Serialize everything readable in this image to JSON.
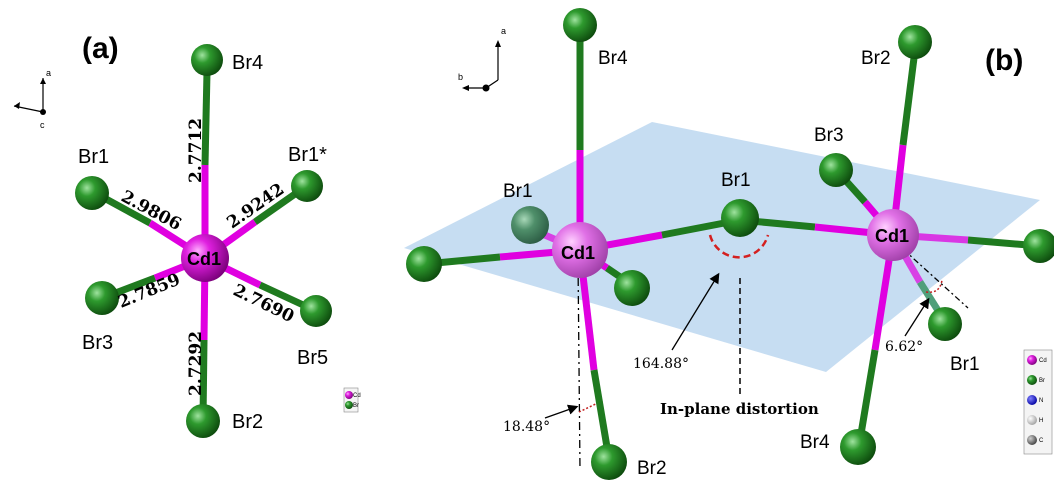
{
  "colors": {
    "cadmium": "#e000e0",
    "bromine": "#1f7a1f",
    "plane": "#bcd7f0",
    "angle_arc": "#d42020"
  },
  "panel_a": {
    "label": "(a)",
    "axis": {
      "up": "a",
      "dot": "c"
    },
    "center": "Cd1",
    "atoms": {
      "br4": "Br4",
      "br1": "Br1",
      "br1s": "Br1*",
      "br3": "Br3",
      "br5": "Br5",
      "br2": "Br2"
    },
    "bonds": {
      "br4": "2.7712",
      "br1": "2.9806",
      "br1s": "2.9242",
      "br3": "2.7859",
      "br5": "2.7690",
      "br2": "2.7292"
    },
    "legend": [
      "Cd",
      "Br"
    ]
  },
  "panel_b": {
    "label": "(b)",
    "axis": {
      "up": "a",
      "left": "b"
    },
    "left_center": "Cd1",
    "right_center": "Cd1",
    "labels": {
      "br1_left": "Br1",
      "br4_left": "Br4",
      "br2_left": "Br2",
      "br1_bridge": "Br1",
      "br2_right": "Br2",
      "br3_right": "Br3",
      "br1_right": "Br1",
      "br4_right": "Br4"
    },
    "angles": {
      "bridge": "164.88°",
      "tilt_left": "18.48°",
      "tilt_right": "6.62°"
    },
    "distortion": "In-plane distortion",
    "legend": [
      "Cd",
      "Br",
      "N",
      "H",
      "C"
    ]
  }
}
